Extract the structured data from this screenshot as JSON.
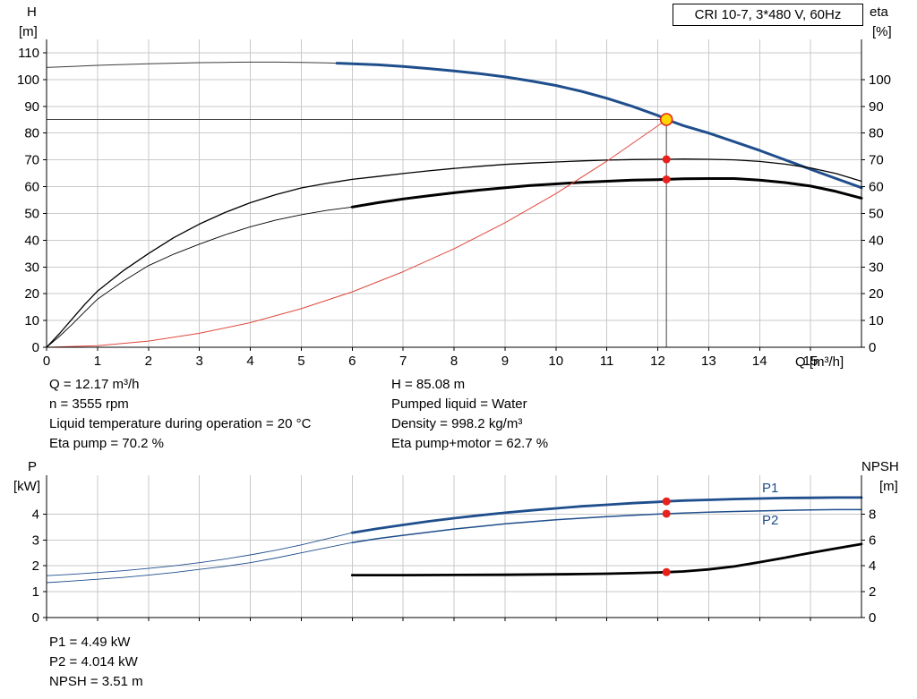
{
  "colors": {
    "pump": "#1f4e8c",
    "black": "#000000",
    "red_curve": "#e0483e",
    "dot": "#e8211d",
    "duty_fill": "#ffd600",
    "duty_stroke": "#e8211d",
    "grid": "#c9c9c9",
    "guide": "#444444",
    "axis": "#000000"
  },
  "top_info": {
    "left": [
      "Q = 12.17 m³/h",
      "n = 3555 rpm",
      "Liquid temperature during operation = 20 °C",
      "Eta pump = 70.2 %"
    ],
    "right": [
      "H = 85.08 m",
      "Pumped liquid = Water",
      "Density = 998.2 kg/m³",
      "Eta pump+motor = 62.7 %"
    ]
  },
  "bottom_info": [
    "P1 = 4.49 kW",
    "P2 = 4.014 kW",
    "NPSH = 3.51 m"
  ],
  "chart_data": [
    {
      "type": "line",
      "name": "hq-eta-chart",
      "title": "CRI 10-7, 3*480 V, 60Hz",
      "grid": true,
      "legend": "none",
      "x_axis": {
        "label": "Q [m³/h]",
        "range": [
          0,
          16
        ],
        "ticks": [
          0,
          1,
          2,
          3,
          4,
          5,
          6,
          7,
          8,
          9,
          10,
          11,
          12,
          13,
          14,
          15
        ],
        "show_labels": true
      },
      "left_axis": {
        "label": "H",
        "unit": "[m]",
        "range": [
          0,
          115
        ],
        "ticks": [
          0,
          10,
          20,
          30,
          40,
          50,
          60,
          70,
          80,
          90,
          100,
          110
        ]
      },
      "right_axis": {
        "label": "eta",
        "unit": "[%]",
        "range": [
          0,
          115
        ],
        "ticks": [
          0,
          10,
          20,
          30,
          40,
          50,
          60,
          70,
          80,
          90,
          100
        ]
      },
      "guides": {
        "vline": {
          "q": 12.17,
          "to_value": 85.08,
          "axis": "left"
        },
        "hline": {
          "value": 85.08,
          "axis": "left",
          "to_q": 12.17
        }
      },
      "series": [
        {
          "name": "pump-curve-low-flow",
          "axis": "left",
          "color": "#3c3c3c",
          "width": 1,
          "points": [
            [
              0,
              104.5
            ],
            [
              0.5,
              104.9
            ],
            [
              1,
              105.3
            ],
            [
              1.5,
              105.6
            ],
            [
              2,
              105.9
            ],
            [
              2.5,
              106.1
            ],
            [
              3,
              106.3
            ],
            [
              3.5,
              106.4
            ],
            [
              4,
              106.5
            ],
            [
              4.5,
              106.5
            ],
            [
              5,
              106.4
            ],
            [
              5.5,
              106.2
            ],
            [
              5.7,
              106.1
            ]
          ]
        },
        {
          "name": "pump-curve",
          "axis": "left",
          "color": "#1f4e8c",
          "width": 3,
          "points": [
            [
              5.7,
              106.1
            ],
            [
              6,
              105.9
            ],
            [
              6.5,
              105.5
            ],
            [
              7,
              104.9
            ],
            [
              7.5,
              104.1
            ],
            [
              8,
              103.2
            ],
            [
              8.5,
              102.2
            ],
            [
              9,
              101
            ],
            [
              9.5,
              99.5
            ],
            [
              10,
              97.8
            ],
            [
              10.5,
              95.6
            ],
            [
              11,
              93
            ],
            [
              11.5,
              90
            ],
            [
              12,
              86.6
            ],
            [
              12.17,
              85.08
            ],
            [
              12.5,
              82.8
            ],
            [
              13,
              80
            ],
            [
              13.5,
              76.8
            ],
            [
              14,
              73.5
            ],
            [
              14.5,
              70
            ],
            [
              15,
              66.5
            ],
            [
              15.5,
              63
            ],
            [
              16,
              59.6
            ]
          ]
        },
        {
          "name": "eta-pump-curve",
          "axis": "right",
          "color": "#000000",
          "width": 1.3,
          "points": [
            [
              0,
              0
            ],
            [
              0.25,
              5
            ],
            [
              0.5,
              10.5
            ],
            [
              0.75,
              16
            ],
            [
              1,
              21
            ],
            [
              1.5,
              28.5
            ],
            [
              2,
              35
            ],
            [
              2.5,
              41
            ],
            [
              3,
              46
            ],
            [
              3.5,
              50.3
            ],
            [
              4,
              54
            ],
            [
              4.5,
              57
            ],
            [
              5,
              59.5
            ],
            [
              5.5,
              61.2
            ],
            [
              6,
              62.7
            ],
            [
              6.5,
              63.8
            ],
            [
              7,
              64.9
            ],
            [
              7.5,
              65.9
            ],
            [
              8,
              66.8
            ],
            [
              8.5,
              67.6
            ],
            [
              9,
              68.3
            ],
            [
              9.5,
              68.8
            ],
            [
              10,
              69.2
            ],
            [
              10.5,
              69.6
            ],
            [
              11,
              69.9
            ],
            [
              11.5,
              70.1
            ],
            [
              12,
              70.2
            ],
            [
              12.17,
              70.2
            ],
            [
              12.5,
              70.3
            ],
            [
              13,
              70.2
            ],
            [
              13.5,
              70
            ],
            [
              14,
              69.4
            ],
            [
              14.5,
              68.4
            ],
            [
              15,
              67
            ],
            [
              15.5,
              64.9
            ],
            [
              16,
              62
            ]
          ]
        },
        {
          "name": "eta-pump-motor-low-flow",
          "axis": "right",
          "color": "#000000",
          "width": 0.9,
          "points": [
            [
              0,
              0
            ],
            [
              0.25,
              4
            ],
            [
              0.5,
              8.5
            ],
            [
              0.75,
              13.3
            ],
            [
              1,
              18
            ],
            [
              1.5,
              24.6
            ],
            [
              2,
              30.5
            ],
            [
              2.5,
              34.8
            ],
            [
              3,
              38.5
            ],
            [
              3.5,
              42
            ],
            [
              4,
              45
            ],
            [
              4.5,
              47.5
            ],
            [
              5,
              49.5
            ],
            [
              5.5,
              51.1
            ],
            [
              6,
              52.4
            ]
          ]
        },
        {
          "name": "eta-pump-motor-curve",
          "axis": "right",
          "color": "#000000",
          "width": 3,
          "points": [
            [
              6,
              52.4
            ],
            [
              6.5,
              54
            ],
            [
              7,
              55.4
            ],
            [
              7.5,
              56.6
            ],
            [
              8,
              57.7
            ],
            [
              8.5,
              58.7
            ],
            [
              9,
              59.6
            ],
            [
              9.5,
              60.4
            ],
            [
              10,
              61
            ],
            [
              10.5,
              61.6
            ],
            [
              11,
              62
            ],
            [
              11.5,
              62.4
            ],
            [
              12,
              62.6
            ],
            [
              12.17,
              62.7
            ],
            [
              12.5,
              62.9
            ],
            [
              13,
              63
            ],
            [
              13.5,
              63
            ],
            [
              14,
              62.4
            ],
            [
              14.5,
              61.5
            ],
            [
              15,
              60.2
            ],
            [
              15.5,
              58.2
            ],
            [
              16,
              55.7
            ]
          ]
        },
        {
          "name": "system-curve",
          "axis": "left",
          "color": "#e0483e",
          "width": 1,
          "points": [
            [
              0,
              0
            ],
            [
              1,
              0.6
            ],
            [
              2,
              2.3
            ],
            [
              3,
              5.2
            ],
            [
              4,
              9.2
            ],
            [
              5,
              14.4
            ],
            [
              6,
              20.7
            ],
            [
              7,
              28.2
            ],
            [
              8,
              36.8
            ],
            [
              9,
              46.5
            ],
            [
              10,
              57.4
            ],
            [
              11,
              69.5
            ],
            [
              12,
              82.7
            ],
            [
              12.17,
              85.08
            ]
          ]
        }
      ],
      "markers": [
        {
          "type": "duty-point",
          "q": 12.17,
          "value": 85.08,
          "axis": "left"
        },
        {
          "type": "dot",
          "q": 12.17,
          "value": 70.2,
          "axis": "right"
        },
        {
          "type": "dot",
          "q": 12.17,
          "value": 62.7,
          "axis": "right"
        }
      ]
    },
    {
      "type": "line",
      "name": "power-npsh-chart",
      "title": "",
      "grid": true,
      "legend": "none",
      "x_axis": {
        "label": "",
        "range": [
          0,
          16
        ],
        "ticks": [
          0,
          1,
          2,
          3,
          4,
          5,
          6,
          7,
          8,
          9,
          10,
          11,
          12,
          13,
          14,
          15
        ],
        "show_labels": false
      },
      "left_axis": {
        "label": "P",
        "unit": "[kW]",
        "range": [
          0,
          5.5
        ],
        "ticks": [
          0,
          1,
          2,
          3,
          4
        ]
      },
      "right_axis": {
        "label": "NPSH",
        "unit": "[m]",
        "range": [
          0,
          11
        ],
        "ticks": [
          0,
          2,
          4,
          6,
          8
        ]
      },
      "guides": null,
      "series": [
        {
          "name": "p1-curve-low-flow",
          "axis": "left",
          "color": "#1f4e8c",
          "width": 0.9,
          "points": [
            [
              0,
              1.62
            ],
            [
              0.5,
              1.67
            ],
            [
              1,
              1.74
            ],
            [
              1.5,
              1.81
            ],
            [
              2,
              1.9
            ],
            [
              2.5,
              2.0
            ],
            [
              3,
              2.12
            ],
            [
              3.5,
              2.26
            ],
            [
              4,
              2.42
            ],
            [
              4.5,
              2.6
            ],
            [
              5,
              2.81
            ],
            [
              5.5,
              3.04
            ],
            [
              6,
              3.28
            ]
          ]
        },
        {
          "name": "p1-curve",
          "label": "P1",
          "axis": "left",
          "color": "#1f4e8c",
          "width": 2.8,
          "points": [
            [
              6,
              3.28
            ],
            [
              6.5,
              3.44
            ],
            [
              7,
              3.58
            ],
            [
              7.5,
              3.72
            ],
            [
              8,
              3.84
            ],
            [
              8.5,
              3.95
            ],
            [
              9,
              4.05
            ],
            [
              9.5,
              4.14
            ],
            [
              10,
              4.22
            ],
            [
              10.5,
              4.3
            ],
            [
              11,
              4.36
            ],
            [
              11.5,
              4.42
            ],
            [
              12,
              4.47
            ],
            [
              12.17,
              4.49
            ],
            [
              12.5,
              4.52
            ],
            [
              13,
              4.55
            ],
            [
              13.5,
              4.58
            ],
            [
              14,
              4.6
            ],
            [
              14.5,
              4.62
            ],
            [
              15,
              4.63
            ],
            [
              15.5,
              4.64
            ],
            [
              16,
              4.64
            ]
          ]
        },
        {
          "name": "p2-curve-low-flow",
          "axis": "left",
          "color": "#1f4e8c",
          "width": 0.9,
          "points": [
            [
              0,
              1.35
            ],
            [
              0.5,
              1.41
            ],
            [
              1,
              1.48
            ],
            [
              1.5,
              1.55
            ],
            [
              2,
              1.64
            ],
            [
              2.5,
              1.74
            ],
            [
              3,
              1.86
            ],
            [
              3.5,
              1.98
            ],
            [
              4,
              2.12
            ],
            [
              4.5,
              2.3
            ],
            [
              5,
              2.5
            ],
            [
              5.5,
              2.7
            ],
            [
              6,
              2.9
            ]
          ]
        },
        {
          "name": "p2-curve",
          "label": "P2",
          "axis": "left",
          "color": "#1f4e8c",
          "width": 1.5,
          "points": [
            [
              6,
              2.9
            ],
            [
              6.5,
              3.05
            ],
            [
              7,
              3.18
            ],
            [
              7.5,
              3.3
            ],
            [
              8,
              3.42
            ],
            [
              8.5,
              3.52
            ],
            [
              9,
              3.62
            ],
            [
              9.5,
              3.7
            ],
            [
              10,
              3.78
            ],
            [
              10.5,
              3.84
            ],
            [
              11,
              3.9
            ],
            [
              11.5,
              3.95
            ],
            [
              12,
              4.0
            ],
            [
              12.17,
              4.014
            ],
            [
              12.5,
              4.04
            ],
            [
              13,
              4.07
            ],
            [
              13.5,
              4.1
            ],
            [
              14,
              4.12
            ],
            [
              14.5,
              4.14
            ],
            [
              15,
              4.16
            ],
            [
              15.5,
              4.17
            ],
            [
              16,
              4.17
            ]
          ]
        },
        {
          "name": "npsh-curve",
          "axis": "right",
          "color": "#000000",
          "width": 2.8,
          "points": [
            [
              6,
              3.28
            ],
            [
              7,
              3.28
            ],
            [
              8,
              3.29
            ],
            [
              9,
              3.31
            ],
            [
              10,
              3.34
            ],
            [
              10.5,
              3.36
            ],
            [
              11,
              3.39
            ],
            [
              11.5,
              3.43
            ],
            [
              12,
              3.49
            ],
            [
              12.17,
              3.51
            ],
            [
              12.5,
              3.56
            ],
            [
              13,
              3.72
            ],
            [
              13.5,
              3.95
            ],
            [
              14,
              4.28
            ],
            [
              14.5,
              4.63
            ],
            [
              15,
              5.0
            ],
            [
              15.5,
              5.35
            ],
            [
              16,
              5.68
            ]
          ]
        }
      ],
      "markers": [
        {
          "type": "dot",
          "q": 12.17,
          "value": 4.49,
          "axis": "left"
        },
        {
          "type": "dot",
          "q": 12.17,
          "value": 4.014,
          "axis": "left"
        },
        {
          "type": "dot",
          "q": 12.17,
          "value": 3.51,
          "axis": "right"
        }
      ]
    }
  ]
}
